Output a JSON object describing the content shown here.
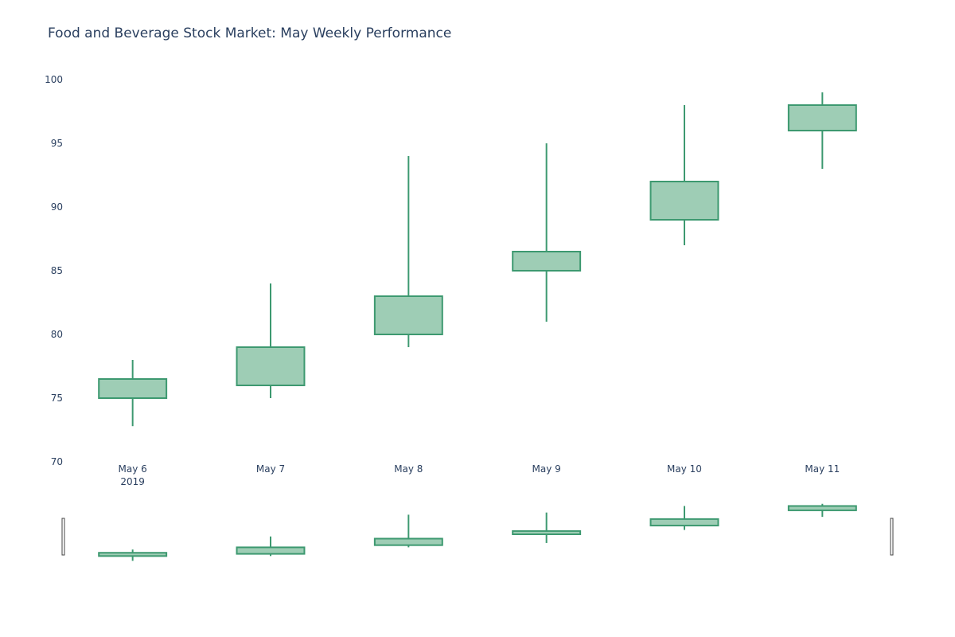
{
  "chart_data": {
    "type": "candlestick",
    "title": "Food and Beverage Stock Market: May Weekly Performance",
    "categories": [
      "May 6",
      "May 7",
      "May 8",
      "May 9",
      "May 10",
      "May 11"
    ],
    "year_label": "2019",
    "ohlc": [
      {
        "open": 75.0,
        "high": 78.0,
        "low": 72.8,
        "close": 76.5
      },
      {
        "open": 76.0,
        "high": 84.0,
        "low": 75.0,
        "close": 79.0
      },
      {
        "open": 80.0,
        "high": 94.0,
        "low": 79.0,
        "close": 83.0
      },
      {
        "open": 85.0,
        "high": 95.0,
        "low": 81.0,
        "close": 86.5
      },
      {
        "open": 89.0,
        "high": 98.0,
        "low": 87.0,
        "close": 92.0
      },
      {
        "open": 96.0,
        "high": 99.0,
        "low": 93.0,
        "close": 98.0
      }
    ],
    "ylim": [
      70,
      100
    ],
    "yticks": [
      70,
      75,
      80,
      85,
      90,
      95,
      100
    ],
    "xlabel": "",
    "ylabel": "",
    "grid": false,
    "rangeslider": true,
    "colors": {
      "increasing_line": "#3d9970",
      "increasing_fill": "#9ecdb5",
      "text": "#2a3f5f"
    }
  }
}
